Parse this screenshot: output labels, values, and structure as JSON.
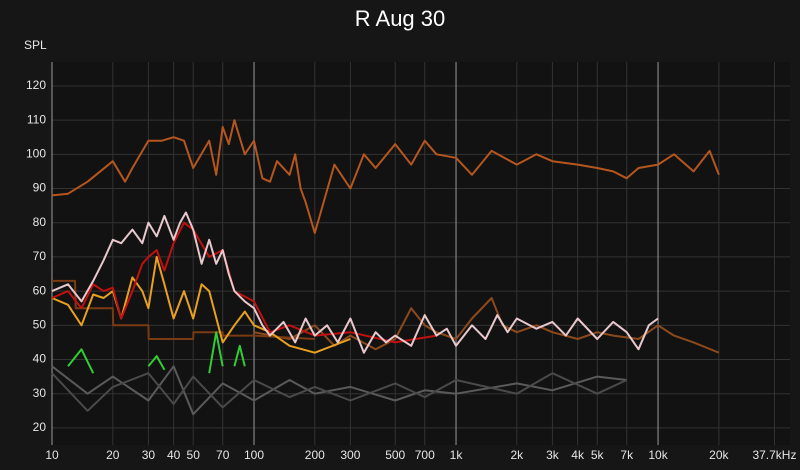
{
  "chart_data": {
    "type": "line",
    "title": "R Aug 30",
    "y_label": "SPL",
    "log_x": true,
    "grid": true,
    "xlim": [
      10,
      45000
    ],
    "ylim": [
      15,
      127
    ],
    "xticks": [
      10,
      20,
      30,
      40,
      50,
      70,
      100,
      200,
      300,
      500,
      700,
      {
        "value": 1000,
        "label": "1k"
      },
      {
        "value": 2000,
        "label": "2k"
      },
      {
        "value": 3000,
        "label": "3k"
      },
      {
        "value": 4000,
        "label": "4k"
      },
      {
        "value": 5000,
        "label": "5k"
      },
      {
        "value": 7000,
        "label": "7k"
      },
      {
        "value": 10000,
        "label": "10k"
      },
      {
        "value": 20000,
        "label": "20k"
      },
      {
        "value": 37700,
        "label": "37.7kHz"
      }
    ],
    "yticks": [
      20,
      30,
      40,
      50,
      60,
      70,
      80,
      90,
      100,
      110,
      120
    ],
    "series": [
      {
        "color": "#5a5a5a",
        "x": [
          10,
          15,
          20,
          30,
          40,
          50,
          70,
          100,
          150,
          200,
          300,
          500,
          700,
          1000,
          2000,
          3000,
          5000,
          7000
        ],
        "values": [
          38,
          30,
          35,
          28,
          38,
          24,
          33,
          28,
          34,
          30,
          32,
          28,
          31,
          30,
          33,
          31,
          35,
          34
        ]
      },
      {
        "color": "#4a4a4a",
        "x": [
          10,
          15,
          20,
          30,
          40,
          50,
          70,
          100,
          150,
          200,
          300,
          500,
          700,
          1000,
          2000,
          3000,
          5000,
          7000
        ],
        "values": [
          36,
          25,
          32,
          36,
          27,
          35,
          26,
          34,
          29,
          32,
          28,
          33,
          29,
          34,
          30,
          36,
          30,
          34
        ]
      },
      {
        "color": "#8c4a1c",
        "x": [
          100,
          150,
          200,
          250,
          300,
          400,
          500,
          600,
          700,
          800,
          1000,
          1200,
          1500,
          1700,
          2000,
          2500,
          3000,
          4000,
          5000,
          6000,
          8000,
          10000,
          12000,
          15000,
          20000
        ],
        "values": [
          48,
          46,
          50,
          44,
          47,
          43,
          46,
          55,
          50,
          48,
          46,
          52,
          58,
          50,
          48,
          50,
          48,
          46,
          48,
          47,
          46,
          50,
          47,
          45,
          42
        ]
      },
      {
        "color": "#7a3a12",
        "x": [
          10,
          13,
          13.1,
          20,
          20.1,
          30,
          30.1,
          50,
          50.1,
          70,
          70.1,
          100,
          200
        ],
        "values": [
          63,
          63,
          55,
          55,
          50,
          50,
          46,
          46,
          48,
          48,
          47,
          47,
          46
        ]
      },
      {
        "color": "#33cc33",
        "x": [
          12,
          14,
          16,
          17,
          30,
          33,
          36,
          37,
          60,
          65,
          70,
          72,
          80,
          85,
          90
        ],
        "values": [
          38,
          43,
          36,
          null,
          38,
          41,
          37,
          null,
          36,
          48,
          38,
          null,
          38,
          44,
          38
        ]
      },
      {
        "color": "#e8a020",
        "x": [
          10,
          12,
          14,
          16,
          18,
          20,
          22,
          25,
          28,
          30,
          33,
          36,
          40,
          45,
          50,
          55,
          60,
          70,
          80,
          90,
          100,
          120,
          150,
          200,
          300
        ],
        "values": [
          58,
          56,
          50,
          59,
          58,
          60,
          52,
          64,
          60,
          55,
          70,
          62,
          52,
          60,
          52,
          62,
          60,
          45,
          50,
          54,
          50,
          48,
          44,
          42,
          46
        ]
      },
      {
        "color": "#c01010",
        "x": [
          10,
          12,
          14,
          16,
          18,
          20,
          22,
          25,
          28,
          30,
          33,
          36,
          40,
          45,
          50,
          60,
          70,
          80,
          100,
          120,
          150,
          200,
          300,
          500,
          800
        ],
        "values": [
          58,
          60,
          55,
          62,
          60,
          61,
          52,
          60,
          68,
          70,
          72,
          66,
          74,
          80,
          78,
          70,
          72,
          60,
          57,
          48,
          50,
          47,
          48,
          45,
          47
        ]
      },
      {
        "color": "#e8c8cc",
        "x": [
          10,
          12,
          14,
          16,
          18,
          20,
          22,
          25,
          28,
          30,
          33,
          36,
          40,
          43,
          46,
          50,
          55,
          60,
          65,
          70,
          75,
          80,
          90,
          100,
          110,
          120,
          140,
          160,
          180,
          200,
          230,
          260,
          300,
          350,
          400,
          450,
          500,
          600,
          700,
          800,
          900,
          1000,
          1200,
          1400,
          1600,
          1800,
          2000,
          2500,
          3000,
          3500,
          4000,
          5000,
          6000,
          7000,
          8000,
          9000,
          10000
        ],
        "values": [
          60,
          62,
          57,
          63,
          69,
          75,
          74,
          78,
          74,
          80,
          76,
          82,
          75,
          80,
          83,
          78,
          68,
          75,
          68,
          72,
          65,
          60,
          57,
          55,
          50,
          47,
          51,
          45,
          52,
          47,
          50,
          45,
          52,
          42,
          48,
          45,
          47,
          44,
          53,
          47,
          49,
          44,
          50,
          46,
          53,
          48,
          52,
          49,
          51,
          47,
          52,
          46,
          51,
          48,
          43,
          50,
          52
        ]
      },
      {
        "color": "#b5561f",
        "x": [
          10,
          12,
          15,
          20,
          23,
          25,
          30,
          35,
          40,
          45,
          50,
          60,
          65,
          70,
          75,
          80,
          90,
          100,
          110,
          120,
          130,
          150,
          160,
          170,
          180,
          200,
          250,
          300,
          350,
          400,
          500,
          600,
          700,
          800,
          1000,
          1200,
          1500,
          2000,
          2500,
          3000,
          4000,
          5000,
          6000,
          7000,
          8000,
          10000,
          12000,
          15000,
          18000,
          20000
        ],
        "values": [
          88,
          88.5,
          92,
          98,
          92,
          96,
          104,
          104,
          105,
          104,
          96,
          104,
          94,
          108,
          103,
          110,
          100,
          104,
          93,
          92,
          98,
          94,
          100,
          90,
          86,
          77,
          97,
          90,
          100,
          96,
          103,
          97,
          104,
          100,
          99,
          94,
          101,
          97,
          100,
          98,
          97,
          96,
          95,
          93,
          96,
          97,
          100,
          95,
          101,
          94
        ]
      }
    ]
  }
}
